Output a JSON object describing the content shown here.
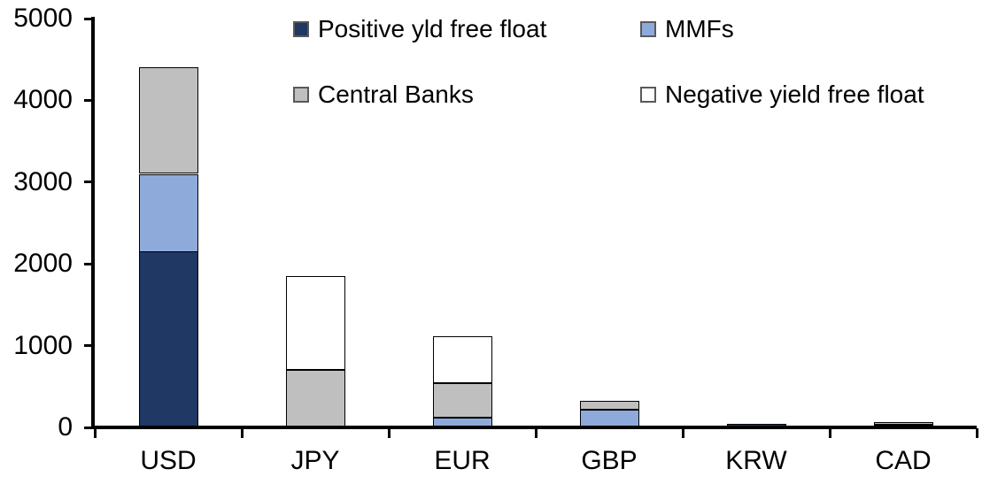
{
  "chart_data": {
    "type": "bar",
    "stacked": true,
    "title": "",
    "xlabel": "",
    "ylabel": "",
    "categories": [
      "USD",
      "JPY",
      "EUR",
      "GBP",
      "KRW",
      "CAD"
    ],
    "series": [
      {
        "name": "Positive yld free float",
        "color": "#1F3864",
        "values": [
          2150,
          0,
          0,
          0,
          40,
          35
        ]
      },
      {
        "name": "MMFs",
        "color": "#8EAADB",
        "values": [
          950,
          0,
          120,
          220,
          0,
          0
        ]
      },
      {
        "name": "Central Banks",
        "color": "#BFBFBF",
        "values": [
          1300,
          700,
          425,
          110,
          0,
          35
        ]
      },
      {
        "name": "Negative yield free float",
        "color": "#FFFFFF",
        "values": [
          0,
          1150,
          575,
          0,
          0,
          0
        ]
      }
    ],
    "totals": [
      4400,
      1850,
      1120,
      330,
      40,
      70
    ],
    "ylim": [
      0,
      5000
    ],
    "yticks": [
      0,
      1000,
      2000,
      3000,
      4000,
      5000
    ],
    "grid": false,
    "legend_position": "top",
    "legend_layout_rows": [
      [
        "Positive yld free float",
        "MMFs"
      ],
      [
        "Central Banks",
        "Negative yield free float"
      ]
    ],
    "colors": {
      "axis": "#000000",
      "text": "#000000",
      "background": "#FFFFFF"
    }
  }
}
